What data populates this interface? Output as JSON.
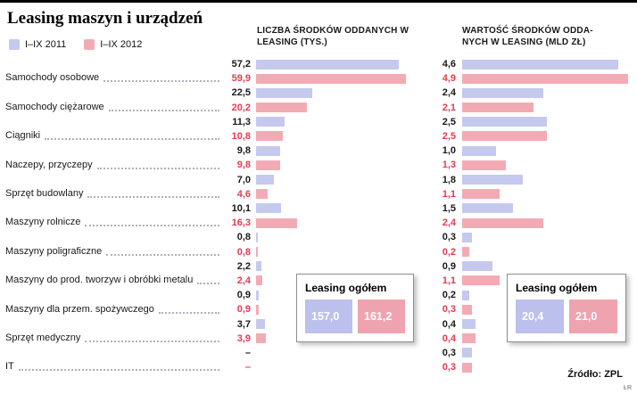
{
  "header": {
    "title": "Leasing maszyn i urządzeń",
    "legend": [
      {
        "label": "I–IX 2011",
        "color": "#c5c9ee"
      },
      {
        "label": "I–IX 2012",
        "color": "#f2abb4"
      }
    ]
  },
  "footer": {
    "source": "Źródło: ZPL",
    "initials": "ŁR"
  },
  "colors": {
    "bar_2011": "#c5c9ee",
    "bar_2012": "#f2abb4",
    "value_2011_text": "#1a1a1a",
    "value_2012_text": "#e6394f"
  },
  "chart_data": {
    "type": "bar",
    "orientation": "horizontal",
    "legend_position": "top-left",
    "categories": [
      "Samochody osobowe",
      "Samochody ciężarowe",
      "Ciągniki",
      "Naczepy, przyczepy",
      "Sprzęt budowlany",
      "Maszyny rolnicze",
      "Maszyny poligraficzne",
      "Maszyny do prod. tworzyw i obróbki metalu",
      "Maszyny dla przem. spożywczego",
      "Sprzęt medyczny",
      "IT"
    ],
    "panels": [
      {
        "title": "LICZBA ŚRODKÓW ODDANYCH W LEASING (TYS.)",
        "unit": "tys.",
        "series": [
          {
            "name": "I–IX 2011",
            "values": [
              "57,2",
              "22,5",
              "11,3",
              "9,8",
              "7,0",
              "10,1",
              "0,8",
              "2,2",
              "0,9",
              "3,7",
              "–"
            ]
          },
          {
            "name": "I–IX 2012",
            "values": [
              "59,9",
              "20,2",
              "10,8",
              "9,8",
              "4,6",
              "16,3",
              "0,8",
              "2,4",
              "0,9",
              "3,9",
              "–"
            ]
          }
        ],
        "total_box": {
          "title": "Leasing ogółem",
          "values": [
            "157,0",
            "161,2"
          ]
        }
      },
      {
        "title": "WARTOŚĆ ŚRODKÓW ODDA-NYCH W LEASING (MLD ZŁ)",
        "unit": "mld zł",
        "series": [
          {
            "name": "I–IX 2011",
            "values": [
              "4,6",
              "2,4",
              "2,5",
              "1,0",
              "1,8",
              "1,5",
              "0,3",
              "0,9",
              "0,2",
              "0,4",
              "0,3"
            ]
          },
          {
            "name": "I–IX 2012",
            "values": [
              "4,9",
              "2,1",
              "2,5",
              "1,3",
              "1,1",
              "2,4",
              "0,2",
              "1,1",
              "0,3",
              "0,4",
              "0,3"
            ]
          }
        ],
        "total_box": {
          "title": "Leasing ogółem",
          "values": [
            "20,4",
            "21,0"
          ]
        }
      }
    ]
  }
}
